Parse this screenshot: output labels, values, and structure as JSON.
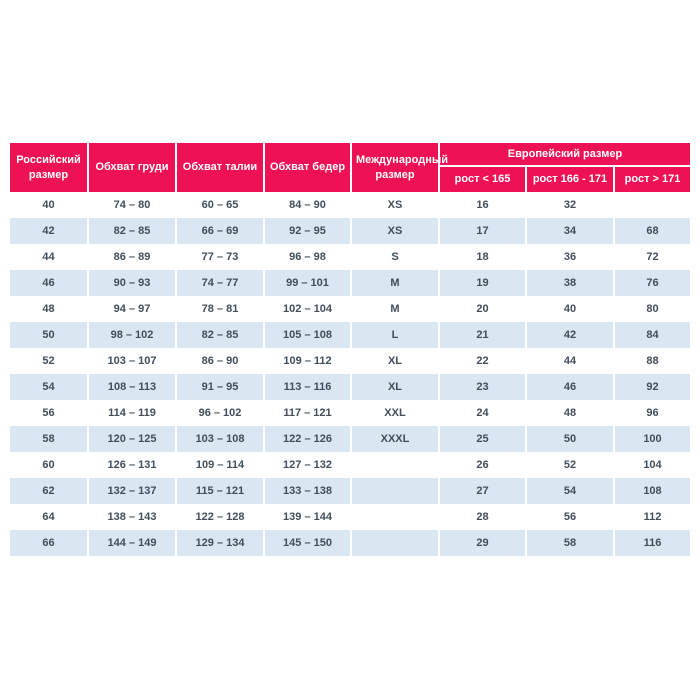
{
  "colors": {
    "header_bg": "#EE1155",
    "header_text": "#FFFFFF",
    "row_stripe_bg": "#DBE6F3",
    "row_plain_bg": "#FFFFFF",
    "body_text": "#414E5B"
  },
  "chart_data": {
    "type": "table",
    "columns": [
      "Российский размер",
      "Обхват груди",
      "Обхват талии",
      "Обхват бедер",
      "Международный размер"
    ],
    "group_header": "Европейский размер",
    "sub_columns": [
      "рост < 165",
      "рост 166 - 171",
      "рост > 171"
    ],
    "rows": [
      [
        "40",
        "74 – 80",
        "60 – 65",
        "84 – 90",
        "XS",
        "16",
        "32",
        ""
      ],
      [
        "42",
        "82 – 85",
        "66 – 69",
        "92 – 95",
        "XS",
        "17",
        "34",
        "68"
      ],
      [
        "44",
        "86 – 89",
        "77 – 73",
        "96 – 98",
        "S",
        "18",
        "36",
        "72"
      ],
      [
        "46",
        "90 – 93",
        "74 – 77",
        "99 – 101",
        "M",
        "19",
        "38",
        "76"
      ],
      [
        "48",
        "94 – 97",
        "78 – 81",
        "102 – 104",
        "M",
        "20",
        "40",
        "80"
      ],
      [
        "50",
        "98 – 102",
        "82 – 85",
        "105 – 108",
        "L",
        "21",
        "42",
        "84"
      ],
      [
        "52",
        "103 – 107",
        "86 – 90",
        "109 – 112",
        "XL",
        "22",
        "44",
        "88"
      ],
      [
        "54",
        "108 – 113",
        "91 – 95",
        "113 – 116",
        "XL",
        "23",
        "46",
        "92"
      ],
      [
        "56",
        "114 – 119",
        "96 – 102",
        "117 – 121",
        "XXL",
        "24",
        "48",
        "96"
      ],
      [
        "58",
        "120 – 125",
        "103 – 108",
        "122 – 126",
        "XXXL",
        "25",
        "50",
        "100"
      ],
      [
        "60",
        "126 – 131",
        "109 – 114",
        "127 – 132",
        "",
        "26",
        "52",
        "104"
      ],
      [
        "62",
        "132 – 137",
        "115 – 121",
        "133 – 138",
        "",
        "27",
        "54",
        "108"
      ],
      [
        "64",
        "138 – 143",
        "122 – 128",
        "139 – 144",
        "",
        "28",
        "56",
        "112"
      ],
      [
        "66",
        "144 – 149",
        "129 – 134",
        "145 – 150",
        "",
        "29",
        "58",
        "116"
      ]
    ]
  }
}
